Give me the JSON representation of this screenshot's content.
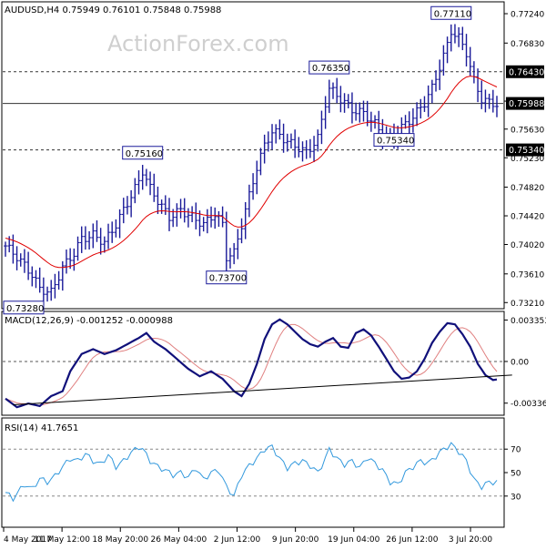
{
  "chart_data": [
    {
      "type": "candlestick",
      "header": "AUDUSD,H4  0.75949 0.76101 0.75848 0.75988",
      "watermark": "ActionForex.com",
      "ylim": [
        0.7315,
        0.7738
      ],
      "y_ticks": [
        "0.77240",
        "0.76830",
        "0.76020",
        "0.75630",
        "0.75230",
        "0.74820",
        "0.74420",
        "0.74020",
        "0.73610",
        "0.73210"
      ],
      "y_tick_values": [
        0.7724,
        0.7683,
        0.7602,
        0.7563,
        0.7523,
        0.7482,
        0.7442,
        0.7402,
        0.7361,
        0.7321
      ],
      "highlight_levels": [
        {
          "label": "0.76430",
          "value": 0.7643,
          "style": "dashed",
          "color": "#000000"
        },
        {
          "label": "0.75988",
          "value": 0.75988,
          "style": "solid",
          "color": "#000000"
        },
        {
          "label": "0.75340",
          "value": 0.7534,
          "style": "dashed",
          "color": "#000000"
        }
      ],
      "annotations": [
        {
          "label": "0.73280",
          "value": 0.7328,
          "x_idx": 2
        },
        {
          "label": "0.75160",
          "value": 0.7516,
          "x_idx": 36
        },
        {
          "label": "0.73700",
          "value": 0.737,
          "x_idx": 58
        },
        {
          "label": "0.76350",
          "value": 0.7635,
          "x_idx": 85
        },
        {
          "label": "0.75340",
          "value": 0.7534,
          "x_idx": 102
        },
        {
          "label": "0.77110",
          "value": 0.7711,
          "x_idx": 117
        }
      ],
      "ma_series_color": "#e00000",
      "price_color": "#1a1a99",
      "anchors": [
        [
          0,
          0.74
        ],
        [
          3,
          0.7385
        ],
        [
          7,
          0.736
        ],
        [
          9,
          0.734
        ],
        [
          12,
          0.7335
        ],
        [
          15,
          0.737
        ],
        [
          18,
          0.739
        ],
        [
          20,
          0.741
        ],
        [
          23,
          0.7415
        ],
        [
          26,
          0.7405
        ],
        [
          29,
          0.743
        ],
        [
          32,
          0.746
        ],
        [
          35,
          0.749
        ],
        [
          36,
          0.7505
        ],
        [
          38,
          0.748
        ],
        [
          41,
          0.7455
        ],
        [
          43,
          0.744
        ],
        [
          46,
          0.745
        ],
        [
          49,
          0.744
        ],
        [
          52,
          0.743
        ],
        [
          55,
          0.7445
        ],
        [
          57,
          0.743
        ],
        [
          58,
          0.7385
        ],
        [
          60,
          0.739
        ],
        [
          62,
          0.743
        ],
        [
          64,
          0.747
        ],
        [
          66,
          0.751
        ],
        [
          68,
          0.754
        ],
        [
          70,
          0.756
        ],
        [
          72,
          0.7555
        ],
        [
          74,
          0.7545
        ],
        [
          76,
          0.754
        ],
        [
          79,
          0.753
        ],
        [
          82,
          0.755
        ],
        [
          84,
          0.76
        ],
        [
          85,
          0.762
        ],
        [
          88,
          0.7605
        ],
        [
          91,
          0.759
        ],
        [
          94,
          0.7585
        ],
        [
          97,
          0.757
        ],
        [
          99,
          0.7555
        ],
        [
          102,
          0.755
        ],
        [
          104,
          0.7565
        ],
        [
          107,
          0.758
        ],
        [
          110,
          0.76
        ],
        [
          112,
          0.762
        ],
        [
          114,
          0.765
        ],
        [
          116,
          0.768
        ],
        [
          117,
          0.77
        ],
        [
          119,
          0.769
        ],
        [
          121,
          0.767
        ],
        [
          123,
          0.763
        ],
        [
          125,
          0.7605
        ],
        [
          127,
          0.76
        ],
        [
          129,
          0.7598
        ]
      ]
    },
    {
      "type": "line",
      "label": "MACD(12,26,9) -0.001252 -0.000988",
      "ylim": [
        -0.0042,
        0.0039
      ],
      "y_ticks": [
        "0.003353",
        "0.00",
        "-0.003369"
      ],
      "y_tick_values": [
        0.003353,
        0.0,
        -0.003369
      ],
      "zero_line": 0.0,
      "trendline": {
        "from": [
          2,
          -0.0035
        ],
        "to": [
          133,
          -0.0011
        ]
      },
      "macd_color": "#10107a",
      "signal_color": "#e08080",
      "macd_anchors": [
        [
          0,
          -0.003
        ],
        [
          3,
          -0.0037
        ],
        [
          6,
          -0.0034
        ],
        [
          9,
          -0.0036
        ],
        [
          12,
          -0.0028
        ],
        [
          15,
          -0.0024
        ],
        [
          17,
          -0.0008
        ],
        [
          20,
          0.0006
        ],
        [
          23,
          0.001
        ],
        [
          26,
          0.0006
        ],
        [
          29,
          0.0009
        ],
        [
          32,
          0.0014
        ],
        [
          35,
          0.0019
        ],
        [
          37,
          0.0023
        ],
        [
          39,
          0.0016
        ],
        [
          42,
          0.001
        ],
        [
          45,
          0.0002
        ],
        [
          48,
          -0.0006
        ],
        [
          51,
          -0.0012
        ],
        [
          54,
          -0.0008
        ],
        [
          57,
          -0.0014
        ],
        [
          60,
          -0.0024
        ],
        [
          62,
          -0.0028
        ],
        [
          64,
          -0.0018
        ],
        [
          66,
          -0.0002
        ],
        [
          68,
          0.0018
        ],
        [
          70,
          0.003
        ],
        [
          72,
          0.0034
        ],
        [
          74,
          0.003
        ],
        [
          76,
          0.0024
        ],
        [
          78,
          0.0018
        ],
        [
          80,
          0.0014
        ],
        [
          82,
          0.0012
        ],
        [
          84,
          0.0016
        ],
        [
          86,
          0.0019
        ],
        [
          88,
          0.0012
        ],
        [
          90,
          0.0011
        ],
        [
          92,
          0.0023
        ],
        [
          94,
          0.0026
        ],
        [
          96,
          0.0021
        ],
        [
          98,
          0.0012
        ],
        [
          100,
          0.0002
        ],
        [
          102,
          -0.0008
        ],
        [
          104,
          -0.0014
        ],
        [
          106,
          -0.0013
        ],
        [
          108,
          -0.0008
        ],
        [
          110,
          0.0002
        ],
        [
          112,
          0.0015
        ],
        [
          114,
          0.0024
        ],
        [
          116,
          0.0031
        ],
        [
          118,
          0.003
        ],
        [
          120,
          0.0022
        ],
        [
          122,
          0.0012
        ],
        [
          124,
          -0.0002
        ],
        [
          126,
          -0.0011
        ],
        [
          128,
          -0.0015
        ],
        [
          130,
          -0.0014
        ]
      ],
      "signal_lag": 3
    },
    {
      "type": "line",
      "label": "RSI(14) 41.7651",
      "ylim": [
        5,
        95
      ],
      "y_ticks": [
        "70",
        "50",
        "30"
      ],
      "y_tick_values": [
        70,
        50,
        30
      ],
      "guides": [
        70,
        30
      ],
      "rsi_color": "#3399dd",
      "anchors": [
        [
          0,
          33
        ],
        [
          2,
          28
        ],
        [
          5,
          40
        ],
        [
          7,
          36
        ],
        [
          9,
          45
        ],
        [
          11,
          42
        ],
        [
          13,
          47
        ],
        [
          15,
          55
        ],
        [
          17,
          62
        ],
        [
          19,
          60
        ],
        [
          21,
          66
        ],
        [
          23,
          60
        ],
        [
          25,
          57
        ],
        [
          27,
          65
        ],
        [
          29,
          55
        ],
        [
          31,
          60
        ],
        [
          33,
          67
        ],
        [
          35,
          72
        ],
        [
          36,
          70
        ],
        [
          38,
          60
        ],
        [
          40,
          55
        ],
        [
          42,
          52
        ],
        [
          44,
          48
        ],
        [
          46,
          50
        ],
        [
          48,
          46
        ],
        [
          50,
          54
        ],
        [
          52,
          44
        ],
        [
          54,
          50
        ],
        [
          56,
          52
        ],
        [
          58,
          38
        ],
        [
          60,
          30
        ],
        [
          62,
          48
        ],
        [
          64,
          56
        ],
        [
          66,
          62
        ],
        [
          68,
          70
        ],
        [
          70,
          72
        ],
        [
          72,
          62
        ],
        [
          74,
          54
        ],
        [
          76,
          58
        ],
        [
          78,
          60
        ],
        [
          80,
          56
        ],
        [
          82,
          50
        ],
        [
          84,
          62
        ],
        [
          85,
          70
        ],
        [
          87,
          62
        ],
        [
          89,
          57
        ],
        [
          91,
          60
        ],
        [
          93,
          54
        ],
        [
          95,
          63
        ],
        [
          97,
          58
        ],
        [
          99,
          52
        ],
        [
          101,
          42
        ],
        [
          103,
          40
        ],
        [
          105,
          50
        ],
        [
          107,
          55
        ],
        [
          109,
          60
        ],
        [
          111,
          58
        ],
        [
          113,
          64
        ],
        [
          115,
          70
        ],
        [
          117,
          74
        ],
        [
          119,
          68
        ],
        [
          121,
          60
        ],
        [
          123,
          44
        ],
        [
          125,
          38
        ],
        [
          127,
          42
        ],
        [
          129,
          41.8
        ]
      ]
    }
  ],
  "x_axis": {
    "labels": [
      "4 May 2017",
      "11 May 12:00",
      "18 May 20:00",
      "26 May 04:00",
      "2 Jun 12:00",
      "9 Jun 20:00",
      "19 Jun 04:00",
      "26 Jun 12:00",
      "3 Jul 20:00"
    ],
    "label_idx": [
      0,
      22,
      44,
      66,
      88,
      110,
      132,
      154,
      176
    ]
  }
}
